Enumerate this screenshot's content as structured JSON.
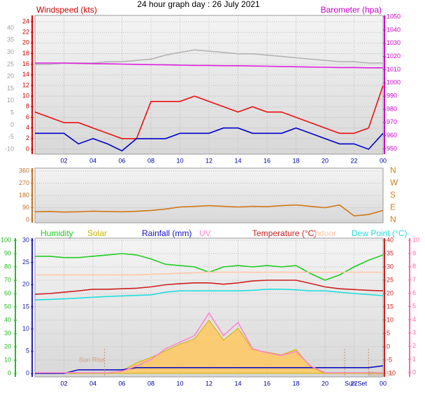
{
  "chart_data": [
    {
      "type": "line",
      "title": "24 hour graph day : 26 July 2021",
      "ylabel": "Windspeed (kts)",
      "y2label": "Barometer (hpa)",
      "axis_colors": {
        "y": "#cc0000",
        "y2": "#cc00cc",
        "y3": "#a0a0a0"
      },
      "x": [
        0,
        1,
        2,
        3,
        4,
        5,
        6,
        7,
        8,
        9,
        10,
        11,
        12,
        13,
        14,
        15,
        16,
        17,
        18,
        19,
        20,
        21,
        22,
        23,
        24
      ],
      "xlim": [
        0,
        24
      ],
      "xticks": [
        {
          "value": 2,
          "label": "02"
        },
        {
          "value": 4,
          "label": "04"
        },
        {
          "value": 6,
          "label": "06"
        },
        {
          "value": 8,
          "label": "08"
        },
        10,
        12,
        14,
        16,
        18,
        20,
        22,
        {
          "value": 24,
          "label": "00"
        }
      ],
      "ylim": [
        -0.92,
        25.19
      ],
      "yticks": [
        0,
        2,
        4,
        6,
        8,
        10,
        12,
        14,
        16,
        18,
        20,
        22,
        24
      ],
      "y2lim": [
        946,
        1051.1
      ],
      "y2ticks": [
        950,
        960,
        970,
        980,
        990,
        1000,
        1010,
        1020,
        1030,
        1040,
        1050
      ],
      "y3lim": [
        -12.02,
        45.2
      ],
      "y3ticks": [
        -10,
        -5,
        0,
        5,
        10,
        15,
        20,
        25,
        30,
        35,
        40
      ],
      "grid": true,
      "series": [
        {
          "color": "#b4b4b4",
          "axis": "y2",
          "values": [
            1014,
            1014,
            1015,
            1015,
            1015,
            1016,
            1016,
            1017,
            1018,
            1021,
            1023,
            1025,
            1024,
            1023,
            1022,
            1022,
            1021,
            1020,
            1019,
            1018,
            1017,
            1016,
            1016,
            1015,
            1015
          ]
        },
        {
          "color": "#e020e0",
          "axis": "y2",
          "values": [
            1015,
            1015,
            1015,
            1014.8,
            1014.6,
            1014.4,
            1014.2,
            1014,
            1013.8,
            1013.6,
            1013.4,
            1013.2,
            1013.2,
            1013,
            1013,
            1012.8,
            1012.6,
            1012.4,
            1012.2,
            1012,
            1011.8,
            1011.6,
            1011.6,
            1011.4,
            1011.4
          ]
        },
        {
          "color": "#ee1111",
          "values": [
            7,
            6,
            5,
            5,
            4,
            3,
            2,
            2,
            9,
            9,
            9,
            10,
            9,
            8,
            7,
            8,
            7,
            7,
            6,
            5,
            4,
            3,
            3,
            4,
            12
          ]
        },
        {
          "color": "#0000cc",
          "values": [
            3,
            3,
            3,
            1,
            2,
            1,
            -0.3,
            2,
            2,
            2,
            3,
            3,
            3,
            4,
            4,
            3,
            3,
            3,
            4,
            3,
            2,
            1,
            1,
            0,
            3
          ]
        }
      ]
    },
    {
      "type": "line",
      "axis_colors": {
        "y": "#c07020",
        "y2": "#d08020"
      },
      "x": [
        0,
        1,
        2,
        3,
        4,
        5,
        6,
        7,
        8,
        9,
        10,
        11,
        12,
        13,
        14,
        15,
        16,
        17,
        18,
        19,
        20,
        21,
        22,
        23,
        24
      ],
      "xlim": [
        0,
        24
      ],
      "ylim": [
        -20.6,
        380.6
      ],
      "yticks": [
        0,
        90,
        180,
        270,
        360
      ],
      "y2lim": [
        -20.6,
        380.6
      ],
      "y2ticks": [
        {
          "value": 360,
          "label": "N"
        },
        {
          "value": 270,
          "label": "W"
        },
        {
          "value": 180,
          "label": "S"
        },
        {
          "value": 90,
          "label": "E"
        },
        {
          "value": 0,
          "label": "N"
        }
      ],
      "grid": true,
      "series": [
        {
          "color": "#d07818",
          "values": [
            60,
            62,
            58,
            60,
            65,
            62,
            60,
            64,
            70,
            80,
            95,
            100,
            105,
            100,
            95,
            100,
            98,
            105,
            110,
            100,
            90,
            110,
            30,
            40,
            70
          ]
        }
      ]
    },
    {
      "type": "line",
      "axis_colors": {
        "y": "#22bb22",
        "y2": "#cc2222",
        "y3": "#2222aa",
        "y4": "#ff66aa"
      },
      "x": [
        0,
        1,
        2,
        3,
        4,
        5,
        6,
        7,
        8,
        9,
        10,
        11,
        12,
        13,
        14,
        15,
        16,
        17,
        18,
        19,
        20,
        21,
        22,
        23,
        24
      ],
      "xlim": [
        0,
        24
      ],
      "xticks": [
        {
          "value": 2,
          "label": "02"
        },
        {
          "value": 4,
          "label": "04"
        },
        {
          "value": 6,
          "label": "06"
        },
        {
          "value": 8,
          "label": "08"
        },
        10,
        12,
        14,
        16,
        18,
        20,
        22,
        {
          "value": 24,
          "label": "00"
        }
      ],
      "ylim": [
        -2.6,
        101.6
      ],
      "yticks": [
        0,
        10,
        20,
        30,
        40,
        50,
        60,
        70,
        80,
        90,
        100
      ],
      "y2lim": [
        -11.32,
        40.79
      ],
      "y2ticks": [
        -10,
        -5,
        0,
        5,
        10,
        15,
        20,
        25,
        30,
        35,
        40
      ],
      "y3lim": [
        -0.79,
        30.47
      ],
      "y3ticks": [
        0,
        5,
        10,
        15,
        20,
        25,
        30
      ],
      "y4lim": [
        -0.32,
        10.16
      ],
      "y4ticks": [
        0,
        1,
        2,
        3,
        4,
        5,
        6,
        7,
        8,
        9,
        10
      ],
      "grid": true,
      "series": [
        {
          "name": "Humidity",
          "color": "#22cc22",
          "values": [
            88,
            88,
            87,
            87,
            88,
            89,
            90,
            89,
            86,
            82,
            81,
            80,
            76,
            80,
            81,
            80,
            81,
            80,
            81,
            75,
            70,
            74,
            80,
            85,
            89
          ]
        },
        {
          "name": "Solar",
          "color": "#c8b400",
          "fill": "#ffc860",
          "values": [
            0,
            0,
            0,
            0,
            0,
            0,
            2,
            8,
            12,
            17,
            22,
            26,
            40,
            25,
            34,
            18,
            16,
            14,
            18,
            5,
            0,
            0,
            0,
            0,
            0
          ]
        },
        {
          "name": "Rainfall (mm)",
          "color": "#1010c0",
          "axis": "y3",
          "values": [
            0,
            0,
            0,
            0.8,
            0.8,
            0.8,
            0.8,
            1.3,
            1.3,
            1.3,
            1.3,
            1.3,
            1.3,
            1.3,
            1.3,
            1.3,
            1.3,
            1.3,
            1.3,
            1.3,
            1.3,
            1.3,
            1.3,
            1.3,
            1.7
          ]
        },
        {
          "name": "UV",
          "color": "#ff88cc",
          "axis": "y4",
          "values": [
            0,
            0,
            0,
            0,
            0,
            0,
            0.1,
            0.5,
            1,
            1.8,
            2.3,
            2.8,
            4.5,
            2.8,
            3.8,
            1.8,
            1.5,
            1.3,
            1.6,
            0.5,
            0,
            0,
            0,
            0,
            0
          ]
        },
        {
          "name": "Temperature (°C)",
          "color": "#cc2020",
          "axis": "y2",
          "values": [
            19.7,
            20,
            20.5,
            21,
            21.6,
            21.6,
            21.8,
            22,
            22.5,
            23.3,
            23.7,
            24,
            24,
            23.5,
            24,
            24.7,
            25,
            25,
            25,
            23.8,
            22.5,
            21.8,
            21.5,
            21.2,
            21
          ]
        },
        {
          "name": "Indoor",
          "color": "#ffc8a8",
          "axis": "y2",
          "values": [
            27,
            27,
            27,
            27,
            27,
            27,
            27,
            27,
            27.2,
            27.4,
            27.6,
            27.8,
            28,
            28,
            28,
            28,
            28,
            28,
            28,
            28,
            28,
            28,
            28,
            28,
            28
          ]
        },
        {
          "name": "Dew Point (°C)",
          "color": "#22dddd",
          "axis": "y2",
          "values": [
            17.6,
            17.8,
            18,
            18.3,
            18.6,
            18.9,
            19.1,
            19.3,
            19.5,
            20.5,
            21,
            21,
            21,
            21,
            21,
            21.2,
            21.6,
            21.6,
            21.4,
            21,
            21,
            20.5,
            20,
            19.6,
            19.2
          ]
        }
      ],
      "annotations": [
        {
          "text": "Sun Rise",
          "x": 4.8
        },
        {
          "text": "Sun Set",
          "x": 21.35
        },
        {
          "text": "Moon Se",
          "x": 23.0
        }
      ]
    }
  ]
}
